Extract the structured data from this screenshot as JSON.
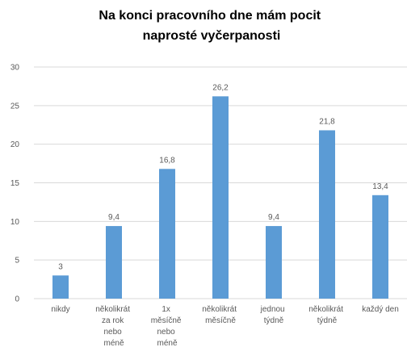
{
  "chart_data": {
    "type": "bar",
    "title": "Na konci pracovního dne mám pocit naprosté vyčerpanosti",
    "categories": [
      "nikdy",
      "několikrát za rok nebo méně",
      "1x měsíčně nebo méně",
      "několikrát měsíčně",
      "jednou týdně",
      "několikrát týdně",
      "každý den"
    ],
    "values": [
      3,
      9.4,
      16.8,
      26.2,
      9.4,
      21.8,
      13.4
    ],
    "value_labels": [
      "3",
      "9,4",
      "16,8",
      "26,2",
      "9,4",
      "21,8",
      "13,4"
    ],
    "color": "#5b9bd5",
    "ylim": [
      0,
      30
    ],
    "yticks": [
      0,
      5,
      10,
      15,
      20,
      25,
      30
    ],
    "grid": true
  }
}
